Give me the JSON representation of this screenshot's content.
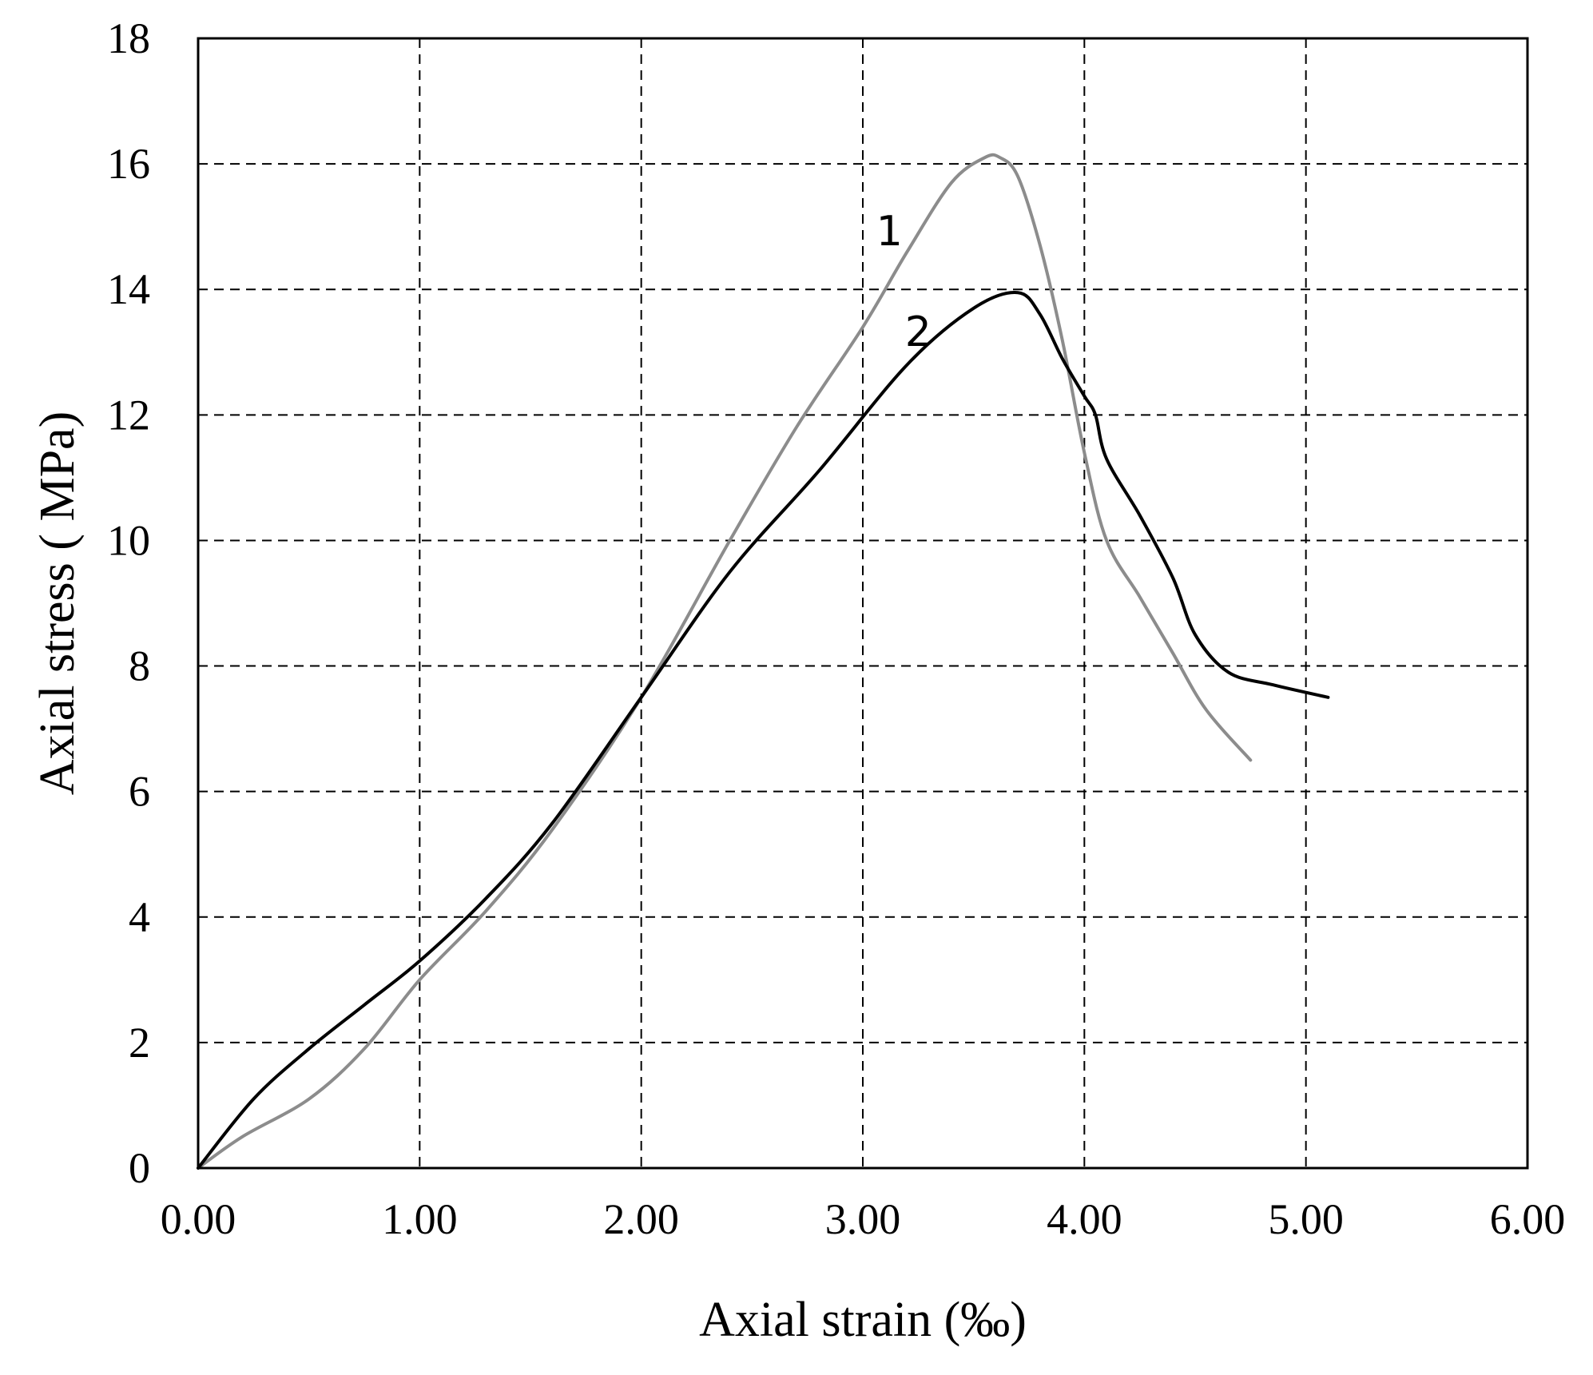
{
  "chart_data": {
    "type": "line",
    "xlabel": "Axial strain (‰)",
    "ylabel": "Axial stress ( MPa)",
    "xlim": [
      0,
      6
    ],
    "ylim": [
      0,
      18
    ],
    "grid": true,
    "x_ticks": [
      "0.00",
      "1.00",
      "2.00",
      "3.00",
      "4.00",
      "5.00",
      "6.00"
    ],
    "y_ticks": [
      "0",
      "2",
      "4",
      "6",
      "8",
      "10",
      "12",
      "14",
      "16",
      "18"
    ],
    "series": [
      {
        "name": "1",
        "color": "#8c8c8c",
        "points": [
          [
            0.0,
            0.0
          ],
          [
            0.2,
            0.5
          ],
          [
            0.5,
            1.1
          ],
          [
            0.75,
            1.9
          ],
          [
            1.0,
            3.0
          ],
          [
            1.3,
            4.1
          ],
          [
            1.6,
            5.4
          ],
          [
            2.0,
            7.5
          ],
          [
            2.4,
            10.0
          ],
          [
            2.7,
            11.8
          ],
          [
            3.0,
            13.4
          ],
          [
            3.2,
            14.6
          ],
          [
            3.4,
            15.7
          ],
          [
            3.55,
            16.1
          ],
          [
            3.62,
            16.1
          ],
          [
            3.7,
            15.8
          ],
          [
            3.8,
            14.7
          ],
          [
            3.9,
            13.2
          ],
          [
            4.0,
            11.4
          ],
          [
            4.1,
            10.0
          ],
          [
            4.25,
            9.1
          ],
          [
            4.4,
            8.2
          ],
          [
            4.55,
            7.3
          ],
          [
            4.75,
            6.5
          ]
        ]
      },
      {
        "name": "2",
        "color": "#000000",
        "points": [
          [
            0.0,
            0.0
          ],
          [
            0.25,
            1.1
          ],
          [
            0.5,
            1.9
          ],
          [
            0.75,
            2.6
          ],
          [
            1.0,
            3.3
          ],
          [
            1.3,
            4.3
          ],
          [
            1.6,
            5.5
          ],
          [
            2.0,
            7.5
          ],
          [
            2.4,
            9.5
          ],
          [
            2.8,
            11.1
          ],
          [
            3.2,
            12.8
          ],
          [
            3.5,
            13.7
          ],
          [
            3.7,
            13.95
          ],
          [
            3.8,
            13.6
          ],
          [
            3.9,
            12.9
          ],
          [
            4.0,
            12.3
          ],
          [
            4.05,
            12.0
          ],
          [
            4.1,
            11.3
          ],
          [
            4.25,
            10.4
          ],
          [
            4.4,
            9.4
          ],
          [
            4.5,
            8.5
          ],
          [
            4.65,
            7.9
          ],
          [
            4.85,
            7.7
          ],
          [
            5.1,
            7.5
          ]
        ]
      }
    ],
    "annotations": [
      {
        "text": "1",
        "x": 3.12,
        "y": 14.7
      },
      {
        "text": "2",
        "x": 3.25,
        "y": 13.1
      }
    ]
  }
}
